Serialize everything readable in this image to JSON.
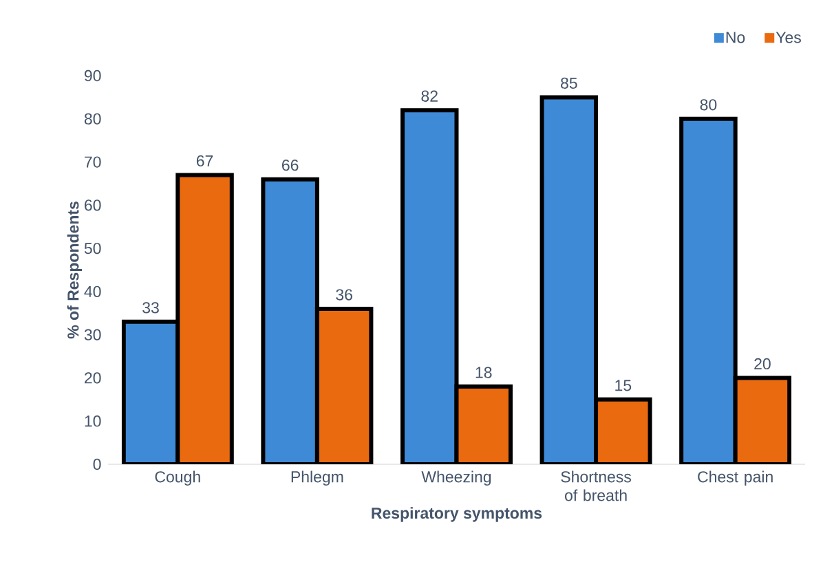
{
  "chart_data": {
    "type": "bar",
    "xlabel": "Respiratory symptoms",
    "ylabel": "% of Respondents",
    "categories": [
      "Cough",
      "Phlegm",
      "Wheezing",
      "Shortness of breath",
      "Chest pain"
    ],
    "series": [
      {
        "name": "No",
        "color": "#3f8ad6",
        "values": [
          33,
          66,
          82,
          85,
          80
        ]
      },
      {
        "name": "Yes",
        "color": "#ea6a10",
        "values": [
          67,
          36,
          18,
          15,
          20
        ]
      }
    ],
    "ylim": [
      0,
      90
    ],
    "yticks": [
      0,
      10,
      20,
      30,
      40,
      50,
      60,
      70,
      80,
      90
    ],
    "data_labels": true,
    "legend": "top right"
  }
}
